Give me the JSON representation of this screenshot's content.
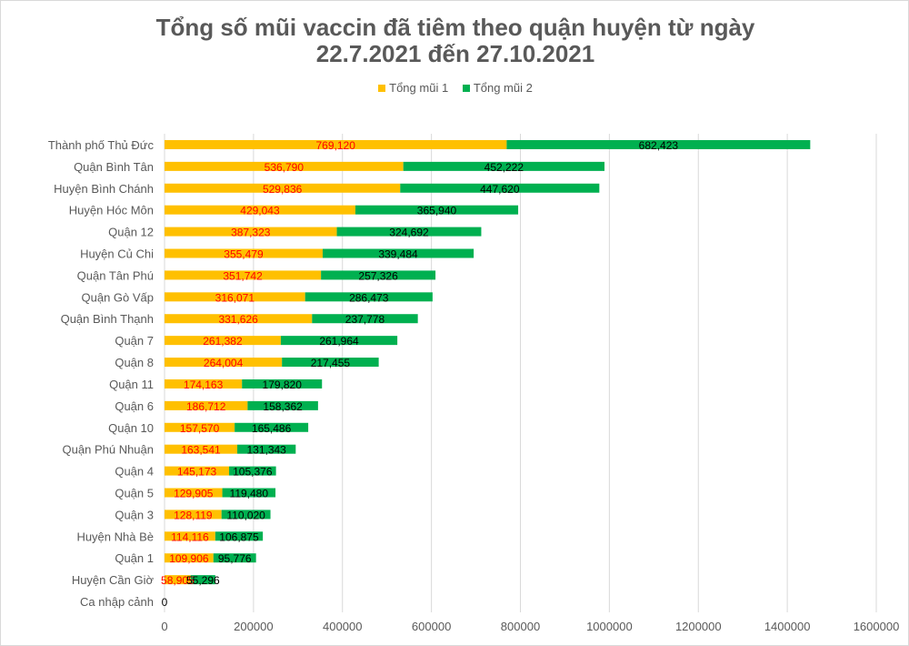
{
  "chart_data": {
    "type": "bar",
    "orientation": "horizontal",
    "stacked": true,
    "title": [
      "Tổng số mũi vaccin đã tiêm theo quận huyện từ ngày",
      "22.7.2021 đến 27.10.2021"
    ],
    "legend_position": "top",
    "xlim": [
      0,
      1600000
    ],
    "xticks": [
      "0",
      "200000",
      "400000",
      "600000",
      "800000",
      "1000000",
      "1200000",
      "1400000",
      "1600000"
    ],
    "grid": true,
    "categories": [
      "Thành phố Thủ Đức",
      "Quận Bình Tân",
      "Huyện Bình Chánh",
      "Huyện Hóc Môn",
      "Quận 12",
      "Huyện Củ Chi",
      "Quận Tân Phú",
      "Quận Gò Vấp",
      "Quận Bình Thạnh",
      "Quận 7",
      "Quận 8",
      "Quận 11",
      "Quận 6",
      "Quận 10",
      "Quận Phú Nhuận",
      "Quận 4",
      "Quận 5",
      "Quận 3",
      "Huyện Nhà Bè",
      "Quận 1",
      "Huyện Cần Giờ",
      "Ca nhập cảnh"
    ],
    "series": [
      {
        "name": "Tổng mũi 1",
        "color": "#FFC000",
        "label_color": "#FF0000",
        "values": [
          769120,
          536790,
          529836,
          429043,
          387323,
          355479,
          351742,
          316071,
          331626,
          261382,
          264004,
          174163,
          186712,
          157570,
          163541,
          145173,
          129905,
          128119,
          114116,
          109906,
          58905,
          0
        ]
      },
      {
        "name": "Tổng mũi 2",
        "color": "#00B050",
        "label_color": "#000000",
        "values": [
          682423,
          452222,
          447620,
          365940,
          324692,
          339484,
          257326,
          286473,
          237778,
          261964,
          217455,
          179820,
          158362,
          165486,
          131343,
          105376,
          119480,
          110020,
          106875,
          95776,
          55296,
          0
        ]
      }
    ]
  }
}
